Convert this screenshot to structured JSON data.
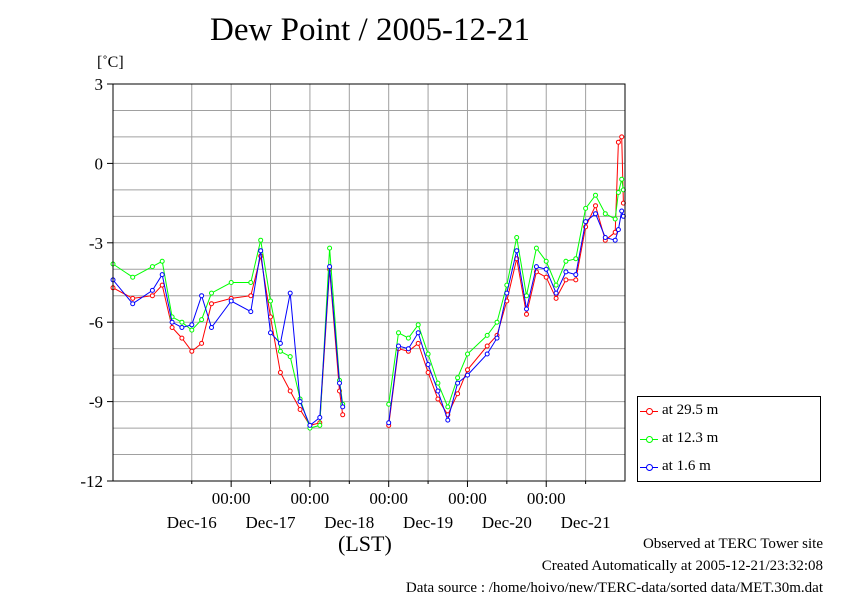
{
  "chart_data": {
    "type": "line",
    "title": "Dew Point / 2005-12-21",
    "y_unit": "[˚C]",
    "xlabel": "(LST)",
    "ylim": [
      -12,
      3
    ],
    "yticks": [
      "3",
      "0",
      "-3",
      "-6",
      "-9",
      "-12"
    ],
    "ytick_values": [
      3,
      0,
      -3,
      -6,
      -9,
      -12
    ],
    "xlim": [
      "2005-12-15 12:00",
      "2005-12-22 00:00"
    ],
    "x_time_ticks": [
      "00:00",
      "00:00",
      "00:00",
      "00:00",
      "00:00"
    ],
    "x_time_tick_values": [
      "2005-12-17 00:00",
      "2005-12-18 00:00",
      "2005-12-19 00:00",
      "2005-12-20 00:00",
      "2005-12-21 00:00"
    ],
    "x_day_labels": [
      "Dec-16",
      "Dec-17",
      "Dec-18",
      "Dec-19",
      "Dec-20",
      "Dec-21"
    ],
    "x_day_label_values": [
      "2005-12-16 12:00",
      "2005-12-17 12:00",
      "2005-12-18 12:00",
      "2005-12-19 12:00",
      "2005-12-20 12:00",
      "2005-12-21 12:00"
    ],
    "grid": true,
    "legend_position": "outside-right-bottom",
    "series": [
      {
        "name": "at 29.5 m",
        "color": "#ff0000",
        "points": [
          [
            "2005-12-15 12:00",
            -4.7
          ],
          [
            "2005-12-15 18:00",
            -5.1
          ],
          [
            "2005-12-16 00:00",
            -5.0
          ],
          [
            "2005-12-16 03:00",
            -4.6
          ],
          [
            "2005-12-16 06:00",
            -6.2
          ],
          [
            "2005-12-16 09:00",
            -6.6
          ],
          [
            "2005-12-16 12:00",
            -7.1
          ],
          [
            "2005-12-16 15:00",
            -6.8
          ],
          [
            "2005-12-16 18:00",
            -5.3
          ],
          [
            "2005-12-17 00:00",
            -5.1
          ],
          [
            "2005-12-17 06:00",
            -5.0
          ],
          [
            "2005-12-17 09:00",
            -3.5
          ],
          [
            "2005-12-17 12:00",
            -5.8
          ],
          [
            "2005-12-17 15:00",
            -7.9
          ],
          [
            "2005-12-17 18:00",
            -8.6
          ],
          [
            "2005-12-17 21:00",
            -9.3
          ],
          [
            "2005-12-18 00:00",
            -9.9
          ],
          [
            "2005-12-18 03:00",
            -9.8
          ],
          [
            "2005-12-18 06:00",
            -4.0
          ],
          [
            "2005-12-18 09:00",
            -8.6
          ],
          [
            "2005-12-18 10:00",
            -9.5
          ],
          [
            null,
            null
          ],
          [
            "2005-12-19 00:00",
            -9.9
          ],
          [
            "2005-12-19 03:00",
            -7.0
          ],
          [
            "2005-12-19 06:00",
            -7.1
          ],
          [
            "2005-12-19 09:00",
            -6.8
          ],
          [
            "2005-12-19 12:00",
            -7.9
          ],
          [
            "2005-12-19 15:00",
            -8.9
          ],
          [
            "2005-12-19 18:00",
            -9.5
          ],
          [
            "2005-12-19 21:00",
            -8.7
          ],
          [
            "2005-12-20 00:00",
            -7.8
          ],
          [
            "2005-12-20 06:00",
            -6.9
          ],
          [
            "2005-12-20 09:00",
            -6.5
          ],
          [
            "2005-12-20 12:00",
            -5.2
          ],
          [
            "2005-12-20 15:00",
            -3.6
          ],
          [
            "2005-12-20 18:00",
            -5.7
          ],
          [
            "2005-12-20 21:00",
            -4.1
          ],
          [
            "2005-12-21 00:00",
            -4.3
          ],
          [
            "2005-12-21 03:00",
            -5.1
          ],
          [
            "2005-12-21 06:00",
            -4.4
          ],
          [
            "2005-12-21 09:00",
            -4.4
          ],
          [
            "2005-12-21 12:00",
            -2.4
          ],
          [
            "2005-12-21 15:00",
            -1.6
          ],
          [
            "2005-12-21 18:00",
            -2.9
          ],
          [
            "2005-12-21 21:00",
            -2.6
          ],
          [
            "2005-12-21 22:00",
            0.8
          ],
          [
            "2005-12-21 23:00",
            1.0
          ],
          [
            "2005-12-21 23:30",
            -1.5
          ]
        ]
      },
      {
        "name": "at 12.3 m",
        "color": "#00ff00",
        "points": [
          [
            "2005-12-15 12:00",
            -3.8
          ],
          [
            "2005-12-15 18:00",
            -4.3
          ],
          [
            "2005-12-16 00:00",
            -3.9
          ],
          [
            "2005-12-16 03:00",
            -3.7
          ],
          [
            "2005-12-16 06:00",
            -5.8
          ],
          [
            "2005-12-16 09:00",
            -6.0
          ],
          [
            "2005-12-16 12:00",
            -6.3
          ],
          [
            "2005-12-16 15:00",
            -5.9
          ],
          [
            "2005-12-16 18:00",
            -4.9
          ],
          [
            "2005-12-17 00:00",
            -4.5
          ],
          [
            "2005-12-17 06:00",
            -4.5
          ],
          [
            "2005-12-17 09:00",
            -2.9
          ],
          [
            "2005-12-17 12:00",
            -5.2
          ],
          [
            "2005-12-17 15:00",
            -7.1
          ],
          [
            "2005-12-17 18:00",
            -7.3
          ],
          [
            "2005-12-17 21:00",
            -8.9
          ],
          [
            "2005-12-18 00:00",
            -10.0
          ],
          [
            "2005-12-18 03:00",
            -9.9
          ],
          [
            "2005-12-18 06:00",
            -3.2
          ],
          [
            "2005-12-18 09:00",
            -8.2
          ],
          [
            "2005-12-18 10:00",
            -9.1
          ],
          [
            null,
            null
          ],
          [
            "2005-12-19 00:00",
            -9.1
          ],
          [
            "2005-12-19 03:00",
            -6.4
          ],
          [
            "2005-12-19 06:00",
            -6.6
          ],
          [
            "2005-12-19 09:00",
            -6.1
          ],
          [
            "2005-12-19 12:00",
            -7.2
          ],
          [
            "2005-12-19 15:00",
            -8.3
          ],
          [
            "2005-12-19 18:00",
            -9.2
          ],
          [
            "2005-12-19 21:00",
            -8.1
          ],
          [
            "2005-12-20 00:00",
            -7.2
          ],
          [
            "2005-12-20 06:00",
            -6.5
          ],
          [
            "2005-12-20 09:00",
            -6.0
          ],
          [
            "2005-12-20 12:00",
            -4.6
          ],
          [
            "2005-12-20 15:00",
            -2.8
          ],
          [
            "2005-12-20 18:00",
            -5.0
          ],
          [
            "2005-12-20 21:00",
            -3.2
          ],
          [
            "2005-12-21 00:00",
            -3.7
          ],
          [
            "2005-12-21 03:00",
            -4.6
          ],
          [
            "2005-12-21 06:00",
            -3.7
          ],
          [
            "2005-12-21 09:00",
            -3.6
          ],
          [
            "2005-12-21 12:00",
            -1.7
          ],
          [
            "2005-12-21 15:00",
            -1.2
          ],
          [
            "2005-12-21 18:00",
            -1.9
          ],
          [
            "2005-12-21 21:00",
            -2.1
          ],
          [
            "2005-12-21 22:00",
            -1.1
          ],
          [
            "2005-12-21 23:00",
            -0.6
          ],
          [
            "2005-12-21 23:30",
            -1.0
          ]
        ]
      },
      {
        "name": "at 1.6 m",
        "color": "#0000ff",
        "points": [
          [
            "2005-12-15 12:00",
            -4.4
          ],
          [
            "2005-12-15 18:00",
            -5.3
          ],
          [
            "2005-12-16 00:00",
            -4.8
          ],
          [
            "2005-12-16 03:00",
            -4.2
          ],
          [
            "2005-12-16 06:00",
            -6.0
          ],
          [
            "2005-12-16 09:00",
            -6.2
          ],
          [
            "2005-12-16 12:00",
            -6.1
          ],
          [
            "2005-12-16 15:00",
            -5.0
          ],
          [
            "2005-12-16 18:00",
            -6.2
          ],
          [
            "2005-12-17 00:00",
            -5.2
          ],
          [
            "2005-12-17 06:00",
            -5.6
          ],
          [
            "2005-12-17 09:00",
            -3.3
          ],
          [
            "2005-12-17 12:00",
            -6.4
          ],
          [
            "2005-12-17 15:00",
            -6.8
          ],
          [
            "2005-12-17 18:00",
            -4.9
          ],
          [
            "2005-12-17 21:00",
            -9.0
          ],
          [
            "2005-12-18 00:00",
            -9.9
          ],
          [
            "2005-12-18 03:00",
            -9.6
          ],
          [
            "2005-12-18 06:00",
            -3.9
          ],
          [
            "2005-12-18 09:00",
            -8.3
          ],
          [
            "2005-12-18 10:00",
            -9.2
          ],
          [
            null,
            null
          ],
          [
            "2005-12-19 00:00",
            -9.8
          ],
          [
            "2005-12-19 03:00",
            -6.9
          ],
          [
            "2005-12-19 06:00",
            -7.0
          ],
          [
            "2005-12-19 09:00",
            -6.4
          ],
          [
            "2005-12-19 12:00",
            -7.6
          ],
          [
            "2005-12-19 15:00",
            -8.6
          ],
          [
            "2005-12-19 18:00",
            -9.7
          ],
          [
            "2005-12-19 21:00",
            -8.3
          ],
          [
            "2005-12-20 00:00",
            -8.0
          ],
          [
            "2005-12-20 06:00",
            -7.2
          ],
          [
            "2005-12-20 09:00",
            -6.6
          ],
          [
            "2005-12-20 12:00",
            -4.9
          ],
          [
            "2005-12-20 15:00",
            -3.3
          ],
          [
            "2005-12-20 18:00",
            -5.5
          ],
          [
            "2005-12-20 21:00",
            -3.9
          ],
          [
            "2005-12-21 00:00",
            -4.0
          ],
          [
            "2005-12-21 03:00",
            -4.9
          ],
          [
            "2005-12-21 06:00",
            -4.1
          ],
          [
            "2005-12-21 09:00",
            -4.2
          ],
          [
            "2005-12-21 12:00",
            -2.2
          ],
          [
            "2005-12-21 15:00",
            -1.9
          ],
          [
            "2005-12-21 18:00",
            -2.8
          ],
          [
            "2005-12-21 21:00",
            -2.9
          ],
          [
            "2005-12-21 22:00",
            -2.5
          ],
          [
            "2005-12-21 23:00",
            -1.8
          ],
          [
            "2005-12-21 23:30",
            -2.0
          ]
        ]
      }
    ]
  },
  "footer": {
    "line1": "Observed at TERC Tower site",
    "line2": "Created Automatically at 2005-12-21/23:32:08",
    "line3": "Data source : /home/hoivo/new/TERC-data/sorted  data/MET.30m.dat"
  }
}
